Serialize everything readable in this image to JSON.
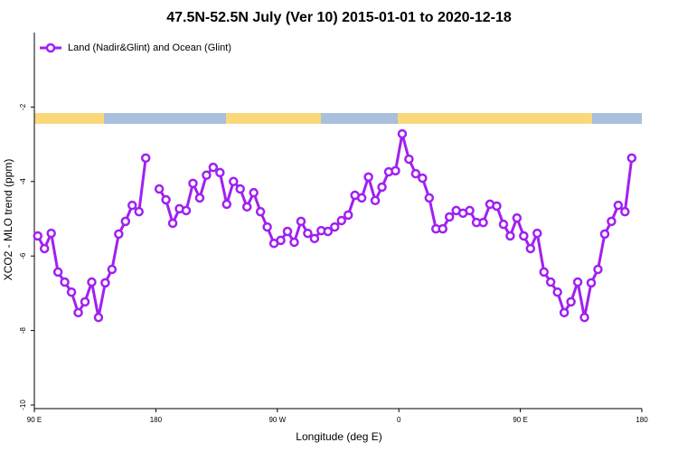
{
  "chart_data": {
    "type": "line",
    "title": "47.5N-52.5N July (Ver 10)   2015-01-01 to 2020-12-18",
    "x_label": "Longitude (deg E)",
    "y_label": "XCO2 - MLO trend (ppm)",
    "legend": "top-left",
    "xlim": [
      90,
      540
    ],
    "xticks": [
      {
        "value": 90,
        "label": "90 E"
      },
      180,
      {
        "value": 270,
        "label": "90 W"
      },
      {
        "value": 360,
        "label": "0"
      },
      {
        "value": 450,
        "label": "90 E"
      },
      {
        "value": 540,
        "label": "180"
      }
    ],
    "ylim": [
      -10,
      0
    ],
    "yticks": [
      -10,
      -8,
      -6,
      -4,
      -2
    ],
    "x": [
      92.5,
      97.5,
      102.5,
      107.5,
      112.5,
      117.5,
      122.5,
      127.5,
      132.5,
      137.5,
      142.5,
      147.5,
      152.5,
      157.5,
      162.5,
      167.5,
      172.5,
      177.5,
      182.5,
      187.5,
      192.5,
      197.5,
      202.5,
      207.5,
      212.5,
      217.5,
      222.5,
      227.5,
      232.5,
      237.5,
      242.5,
      247.5,
      252.5,
      257.5,
      262.5,
      267.5,
      272.5,
      277.5,
      282.5,
      287.5,
      292.5,
      297.5,
      302.5,
      307.5,
      312.5,
      317.5,
      322.5,
      327.5,
      332.5,
      337.5,
      342.5,
      347.5,
      352.5,
      357.5,
      362.5,
      367.5,
      372.5,
      377.5,
      382.5,
      387.5,
      392.5,
      397.5,
      402.5,
      407.5,
      412.5,
      417.5,
      422.5,
      427.5,
      432.5,
      437.5,
      442.5,
      447.5,
      452.5,
      457.5,
      462.5,
      467.5,
      472.5,
      477.5,
      482.5,
      487.5,
      492.5,
      497.5,
      502.5,
      507.5,
      512.5,
      517.5,
      522.5,
      527.5,
      532.5
    ],
    "series": [
      {
        "name": "Land (Nadir&Glint) and Ocean (Glint)",
        "color": "#a020f0",
        "values": [
          -5.46,
          -5.8,
          -5.39,
          -6.43,
          -6.7,
          -6.97,
          -7.52,
          -7.23,
          -6.7,
          -7.65,
          -6.72,
          -6.36,
          -5.41,
          -5.07,
          -4.64,
          -4.81,
          -3.37,
          null,
          -4.2,
          -4.49,
          -5.12,
          -4.73,
          -4.78,
          -4.05,
          -4.44,
          -3.83,
          -3.62,
          -3.76,
          -4.61,
          -4.0,
          -4.2,
          -4.68,
          -4.3,
          -4.81,
          -5.22,
          -5.66,
          -5.58,
          -5.34,
          -5.63,
          -5.07,
          -5.39,
          -5.53,
          -5.32,
          -5.34,
          -5.22,
          -5.05,
          -4.9,
          -4.37,
          -4.44,
          -3.88,
          -4.51,
          -4.15,
          -3.74,
          -3.71,
          -2.72,
          -3.4,
          -3.79,
          -3.91,
          -4.44,
          -5.27,
          -5.27,
          -4.95,
          -4.78,
          -4.85,
          -4.78,
          -5.1,
          -5.1,
          -4.61,
          -4.66,
          -5.15,
          -5.46,
          -4.98,
          -5.46,
          -5.8,
          -5.39,
          -6.43,
          -6.7,
          -6.97,
          -7.52,
          -7.23,
          -6.7,
          -7.65,
          -6.72,
          -6.36,
          -5.41,
          -5.07,
          -4.64,
          -4.81,
          -3.37
        ]
      }
    ]
  }
}
